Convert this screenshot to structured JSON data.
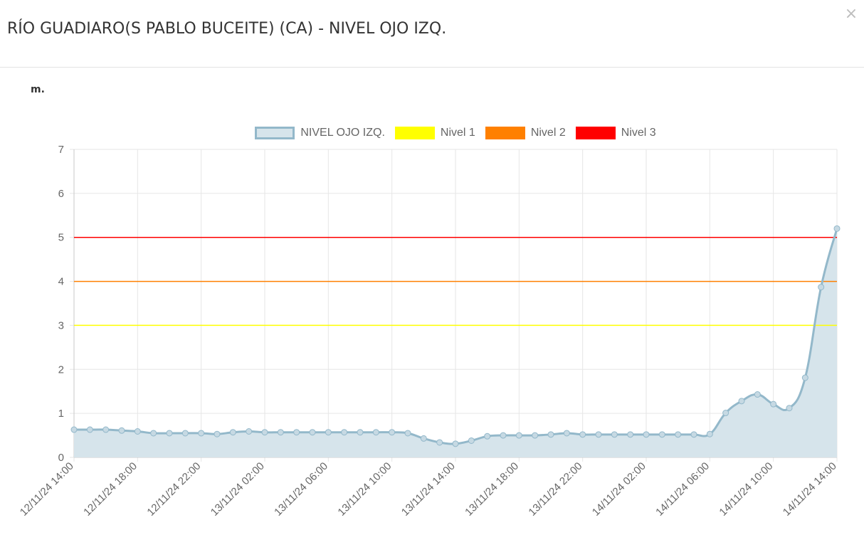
{
  "modal": {
    "title": "RÍO GUADIARO(S PABLO BUCEITE) (CA) - NIVEL OJO IZQ.",
    "close_icon": "×"
  },
  "chart_data": {
    "type": "line",
    "unit": "m.",
    "ylim": [
      0,
      7
    ],
    "yticks": [
      0,
      1,
      2,
      3,
      4,
      5,
      6,
      7
    ],
    "grid": true,
    "legend_position": "top",
    "x_tick_labels": [
      "12/11/24 14:00",
      "12/11/24 18:00",
      "12/11/24 22:00",
      "13/11/24 02:00",
      "13/11/24 06:00",
      "13/11/24 10:00",
      "13/11/24 14:00",
      "13/11/24 18:00",
      "13/11/24 22:00",
      "14/11/24 02:00",
      "14/11/24 06:00",
      "14/11/24 10:00",
      "14/11/24 14:00"
    ],
    "x": [
      "12/11/24 14:00",
      "12/11/24 15:00",
      "12/11/24 16:00",
      "12/11/24 17:00",
      "12/11/24 18:00",
      "12/11/24 19:00",
      "12/11/24 20:00",
      "12/11/24 21:00",
      "12/11/24 22:00",
      "12/11/24 23:00",
      "13/11/24 00:00",
      "13/11/24 01:00",
      "13/11/24 02:00",
      "13/11/24 03:00",
      "13/11/24 04:00",
      "13/11/24 05:00",
      "13/11/24 06:00",
      "13/11/24 07:00",
      "13/11/24 08:00",
      "13/11/24 09:00",
      "13/11/24 10:00",
      "13/11/24 11:00",
      "13/11/24 12:00",
      "13/11/24 13:00",
      "13/11/24 14:00",
      "13/11/24 15:00",
      "13/11/24 16:00",
      "13/11/24 17:00",
      "13/11/24 18:00",
      "13/11/24 19:00",
      "13/11/24 20:00",
      "13/11/24 21:00",
      "13/11/24 22:00",
      "13/11/24 23:00",
      "14/11/24 00:00",
      "14/11/24 01:00",
      "14/11/24 02:00",
      "14/11/24 03:00",
      "14/11/24 04:00",
      "14/11/24 05:00",
      "14/11/24 06:00",
      "14/11/24 07:00",
      "14/11/24 08:00",
      "14/11/24 09:00",
      "14/11/24 10:00",
      "14/11/24 11:00",
      "14/11/24 12:00",
      "14/11/24 13:00",
      "14/11/24 14:00"
    ],
    "series": [
      {
        "name": "NIVEL OJO IZQ.",
        "kind": "area",
        "color": "#93b8ca",
        "fill": "#d6e4eb",
        "values": [
          0.63,
          0.63,
          0.63,
          0.61,
          0.59,
          0.55,
          0.55,
          0.55,
          0.55,
          0.53,
          0.57,
          0.59,
          0.57,
          0.57,
          0.57,
          0.57,
          0.57,
          0.57,
          0.57,
          0.57,
          0.57,
          0.55,
          0.43,
          0.34,
          0.31,
          0.38,
          0.48,
          0.5,
          0.5,
          0.5,
          0.52,
          0.55,
          0.52,
          0.52,
          0.52,
          0.52,
          0.52,
          0.52,
          0.52,
          0.52,
          0.53,
          1.01,
          1.28,
          1.43,
          1.21,
          1.12,
          1.81,
          3.87,
          5.2
        ]
      },
      {
        "name": "Nivel 1",
        "kind": "threshold",
        "color": "#ffff00",
        "value": 3
      },
      {
        "name": "Nivel 2",
        "kind": "threshold",
        "color": "#ff8000",
        "value": 4
      },
      {
        "name": "Nivel 3",
        "kind": "threshold",
        "color": "#ff0000",
        "value": 5
      }
    ]
  }
}
